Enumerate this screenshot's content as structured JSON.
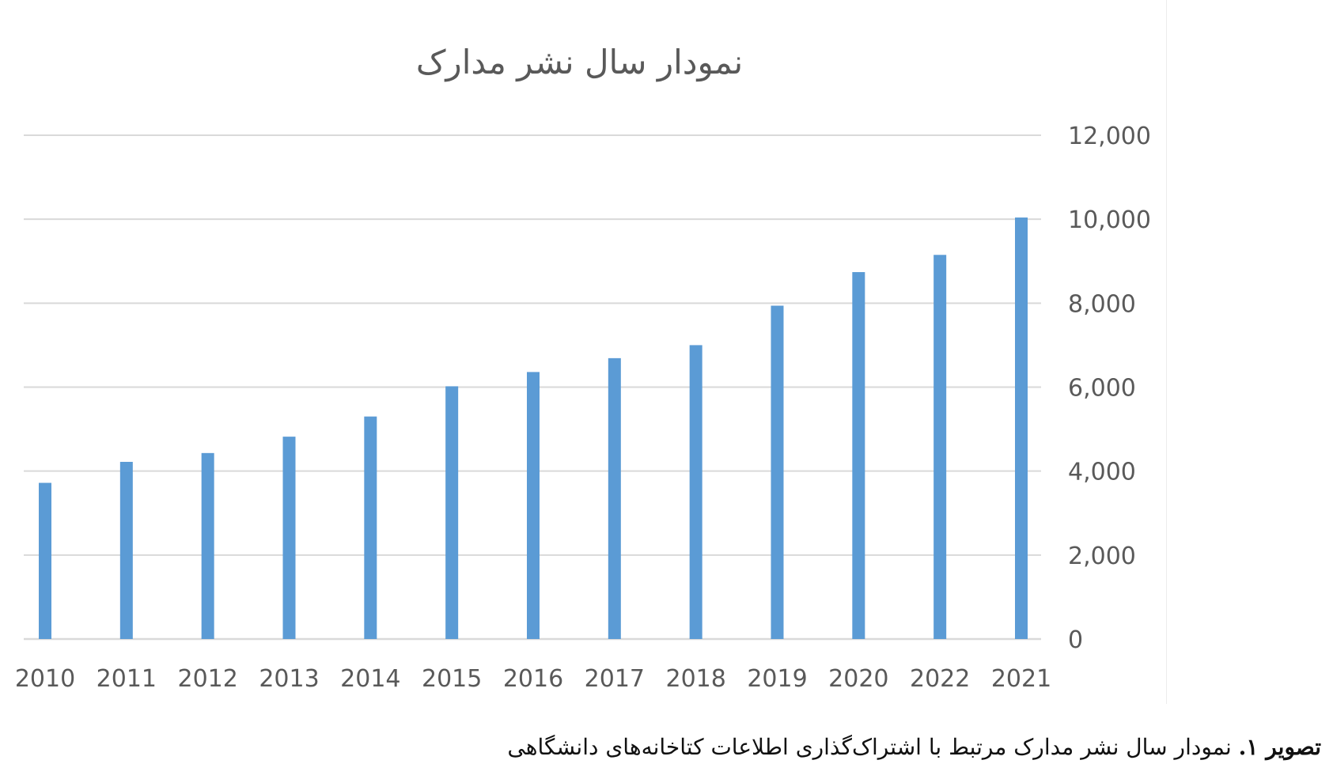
{
  "chart_data": {
    "type": "bar",
    "title": "نمودار سال نشر مدارک",
    "categories": [
      "2010",
      "2011",
      "2012",
      "2013",
      "2014",
      "2015",
      "2016",
      "2017",
      "2018",
      "2019",
      "2020",
      "2022",
      "2021"
    ],
    "values": [
      3720,
      4220,
      4430,
      4820,
      5300,
      6020,
      6360,
      6690,
      7000,
      7940,
      8740,
      9150,
      10040
    ],
    "xlabel": "",
    "ylabel": "",
    "ylim": [
      0,
      12000
    ],
    "yticks": [
      "0",
      "2,000",
      "4,000",
      "6,000",
      "8,000",
      "10,000",
      "12,000"
    ],
    "y_axis_side": "right",
    "grid": true,
    "legend": "none",
    "bar_color": "#5b9bd5",
    "grid_color": "#d9d9d9"
  },
  "caption": {
    "label": "تصویر ۱.",
    "text": " نمودار سال نشر مدارک مرتبط با اشتراک‌گذاری اطلاعات کتاخانه‌های دانشگاهی"
  }
}
